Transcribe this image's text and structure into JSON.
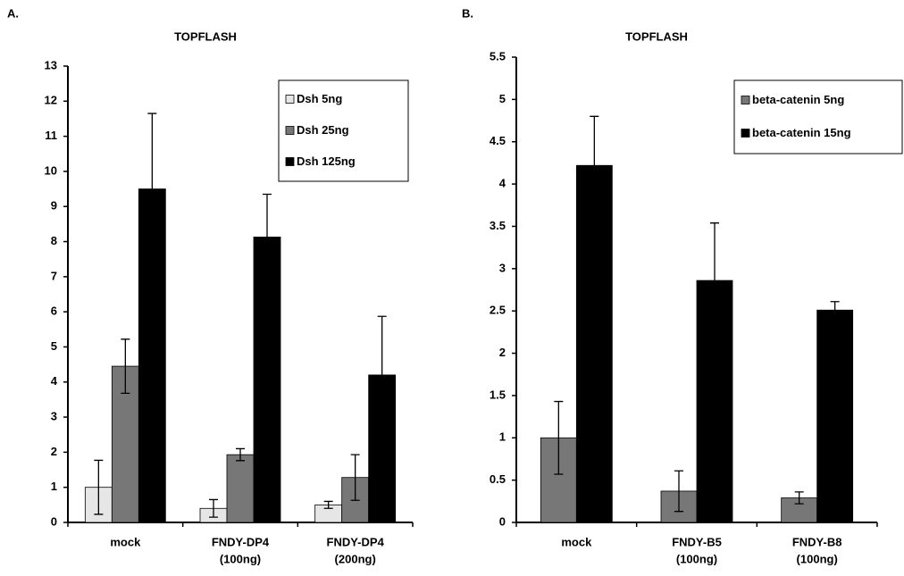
{
  "chart_data": [
    {
      "type": "bar",
      "panel": "A.",
      "title": "TOPFLASH",
      "categories": [
        [
          "mock"
        ],
        [
          "FNDY-DP4",
          "(100ng)"
        ],
        [
          "FNDY-DP4",
          "(200ng)"
        ]
      ],
      "series": [
        {
          "name": "Dsh 5ng",
          "color": "#e6e6e6",
          "values": [
            1.0,
            0.4,
            0.5
          ],
          "errors": [
            0.77,
            0.25,
            0.1
          ]
        },
        {
          "name": "Dsh 25ng",
          "color": "#777777",
          "values": [
            4.45,
            1.93,
            1.28
          ],
          "errors": [
            0.77,
            0.17,
            0.65
          ]
        },
        {
          "name": "Dsh 125ng",
          "color": "#000000",
          "values": [
            9.5,
            8.13,
            4.2
          ],
          "errors": [
            2.15,
            1.22,
            1.67
          ]
        }
      ],
      "ylim": [
        0,
        13
      ],
      "yticks": [
        0,
        1,
        2,
        3,
        4,
        5,
        6,
        7,
        8,
        9,
        10,
        11,
        12,
        13
      ],
      "legend": "upper right"
    },
    {
      "type": "bar",
      "panel": "B.",
      "title": "TOPFLASH",
      "categories": [
        [
          "mock"
        ],
        [
          "FNDY-B5",
          "(100ng)"
        ],
        [
          "FNDY-B8",
          "(100ng)"
        ]
      ],
      "series": [
        {
          "name": "beta-catenin 5ng",
          "color": "#777777",
          "values": [
            1.0,
            0.37,
            0.29
          ],
          "errors": [
            0.43,
            0.24,
            0.07
          ]
        },
        {
          "name": "beta-catenin 15ng",
          "color": "#000000",
          "values": [
            4.22,
            2.86,
            2.51
          ],
          "errors": [
            0.58,
            0.68,
            0.1
          ]
        }
      ],
      "ylim": [
        0,
        5.5
      ],
      "yticks": [
        0,
        0.5,
        1,
        1.5,
        2,
        2.5,
        3,
        3.5,
        4,
        4.5,
        5,
        5.5
      ],
      "legend": "upper right"
    }
  ]
}
